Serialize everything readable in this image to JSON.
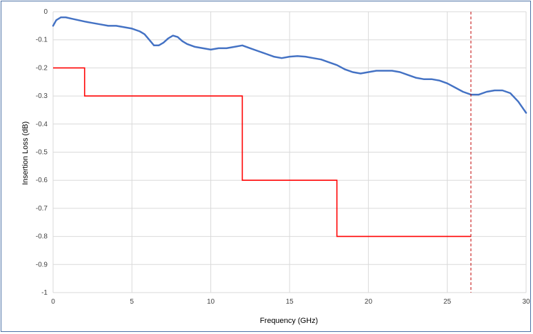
{
  "chart_data": {
    "type": "line",
    "xlabel": "Frequency (GHz)",
    "ylabel": "Insertion Loss (dB)",
    "xlim": [
      0,
      30
    ],
    "ylim": [
      -1,
      0
    ],
    "x_ticks": [
      "0",
      "5",
      "10",
      "15",
      "20",
      "25",
      "30"
    ],
    "y_ticks": [
      "0",
      "-0.1",
      "-0.2",
      "-0.3",
      "-0.4",
      "-0.5",
      "-0.6",
      "-0.7",
      "-0.8",
      "-0.9",
      "-1"
    ],
    "grid": true,
    "series": [
      {
        "style": "measured",
        "color": "#4472c4",
        "x": [
          0,
          0.2,
          0.5,
          0.8,
          1.2,
          1.6,
          2,
          2.5,
          3,
          3.5,
          4,
          4.5,
          5,
          5.5,
          5.8,
          6.1,
          6.4,
          6.7,
          7,
          7.3,
          7.6,
          7.9,
          8.2,
          8.5,
          9,
          9.5,
          10,
          10.5,
          11,
          11.5,
          12,
          12.5,
          13,
          13.5,
          14,
          14.5,
          15,
          15.5,
          16,
          16.5,
          17,
          17.5,
          18,
          18.5,
          19,
          19.5,
          20,
          20.5,
          21,
          21.5,
          22,
          22.5,
          23,
          23.5,
          24,
          24.5,
          25,
          25.5,
          26,
          26.5,
          27,
          27.5,
          28,
          28.5,
          29,
          29.5,
          30
        ],
        "y": [
          -0.05,
          -0.03,
          -0.02,
          -0.02,
          -0.025,
          -0.03,
          -0.035,
          -0.04,
          -0.045,
          -0.05,
          -0.05,
          -0.055,
          -0.06,
          -0.07,
          -0.08,
          -0.1,
          -0.12,
          -0.12,
          -0.11,
          -0.095,
          -0.085,
          -0.09,
          -0.105,
          -0.115,
          -0.125,
          -0.13,
          -0.135,
          -0.13,
          -0.13,
          -0.125,
          -0.12,
          -0.13,
          -0.14,
          -0.15,
          -0.16,
          -0.165,
          -0.16,
          -0.158,
          -0.16,
          -0.165,
          -0.17,
          -0.18,
          -0.19,
          -0.205,
          -0.215,
          -0.22,
          -0.215,
          -0.21,
          -0.21,
          -0.21,
          -0.215,
          -0.225,
          -0.235,
          -0.24,
          -0.24,
          -0.245,
          -0.255,
          -0.27,
          -0.285,
          -0.295,
          -0.295,
          -0.285,
          -0.28,
          -0.28,
          -0.29,
          -0.32,
          -0.36
        ]
      },
      {
        "style": "specification-limit",
        "color": "#ff0000",
        "x": [
          0,
          2,
          2,
          12,
          12,
          18,
          18,
          26.5
        ],
        "y": [
          -0.2,
          -0.2,
          -0.3,
          -0.3,
          -0.6,
          -0.6,
          -0.8,
          -0.8
        ]
      }
    ],
    "vertical_marker": {
      "x": 26.5,
      "color": "#c00000",
      "dashed": true
    }
  }
}
